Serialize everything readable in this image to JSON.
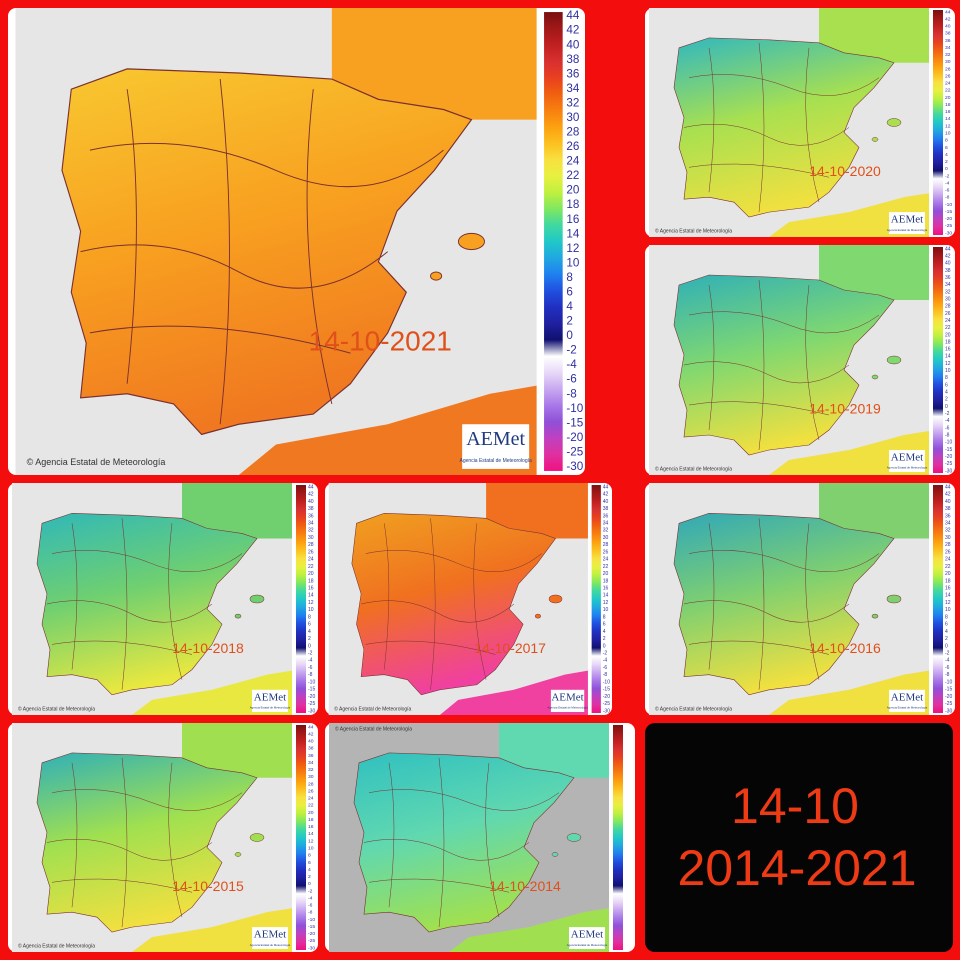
{
  "maps": [
    {
      "date": "14-10-2021"
    },
    {
      "date": "14-10-2020"
    },
    {
      "date": "14-10-2019"
    },
    {
      "date": "14-10-2018"
    },
    {
      "date": "14-10-2017"
    },
    {
      "date": "14-10-2016"
    },
    {
      "date": "14-10-2015"
    },
    {
      "date": "14-10-2014"
    }
  ],
  "credit": "© Agencia Estatal de Meteorología",
  "logo": "AEMet",
  "logo_caption": "Agencia Estatal de Meteorología",
  "scale_labels": [
    44,
    42,
    40,
    38,
    36,
    34,
    32,
    30,
    28,
    26,
    24,
    22,
    20,
    18,
    16,
    14,
    12,
    10,
    8,
    6,
    4,
    2,
    0,
    -2,
    -4,
    -6,
    -8,
    -10,
    -15,
    -20,
    -25,
    -30
  ],
  "summary": {
    "date": "14-10",
    "years": "2014-2021"
  }
}
